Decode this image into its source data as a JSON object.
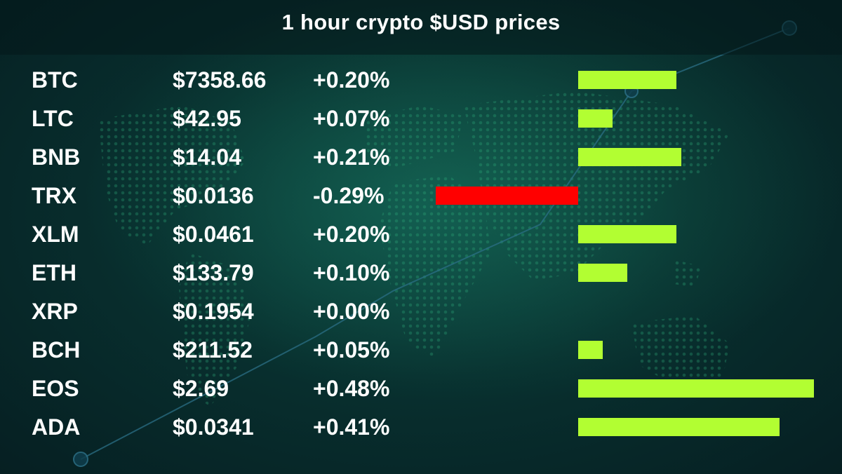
{
  "title": "1 hour crypto $USD prices",
  "colors": {
    "positive_bar": "#b2fe32",
    "negative_bar": "#ff0000",
    "text": "#ffffff"
  },
  "chart_data": {
    "type": "bar",
    "title": "1 hour crypto $USD prices",
    "categories": [
      "BTC",
      "LTC",
      "BNB",
      "TRX",
      "XLM",
      "ETH",
      "XRP",
      "BCH",
      "EOS",
      "ADA"
    ],
    "prices": [
      "$7358.66",
      "$42.95",
      "$14.04",
      "$0.0136",
      "$0.0461",
      "$133.79",
      "$0.1954",
      "$211.52",
      "$2.69",
      "$0.0341"
    ],
    "change_labels": [
      "+0.20%",
      "+0.07%",
      "+0.21%",
      "-0.29%",
      "+0.20%",
      "+0.10%",
      "+0.00%",
      "+0.05%",
      "+0.48%",
      "+0.41%"
    ],
    "values": [
      0.2,
      0.07,
      0.21,
      -0.29,
      0.2,
      0.1,
      0.0,
      0.05,
      0.48,
      0.41
    ],
    "unit": "%",
    "grid": false
  }
}
